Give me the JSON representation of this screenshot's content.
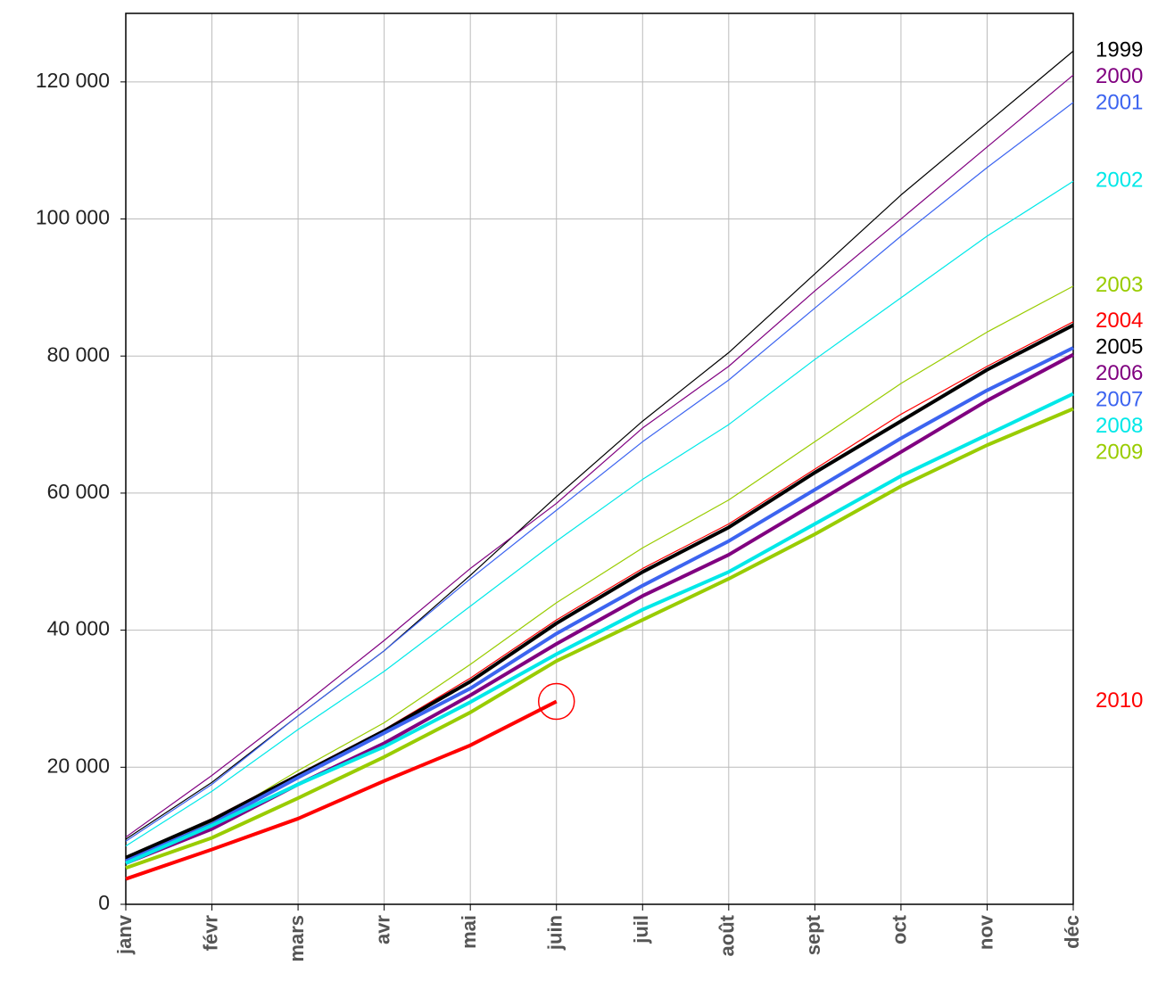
{
  "chart_data": {
    "type": "line",
    "categories": [
      "janv",
      "févr",
      "mars",
      "avr",
      "mai",
      "juin",
      "juil",
      "août",
      "sept",
      "oct",
      "nov",
      "déc"
    ],
    "ylim": [
      0,
      130000
    ],
    "yticks": [
      {
        "value": 0,
        "label": "0"
      },
      {
        "value": 20000,
        "label": "20 000"
      },
      {
        "value": 40000,
        "label": "40 000"
      },
      {
        "value": 60000,
        "label": "60 000"
      },
      {
        "value": 80000,
        "label": "80 000"
      },
      {
        "value": 100000,
        "label": "100 000"
      },
      {
        "value": 120000,
        "label": "120 000"
      }
    ],
    "grid": true,
    "series": [
      {
        "name": "1999",
        "color": "#000000",
        "values": [
          9500,
          17800,
          27500,
          37000,
          48000,
          59500,
          70500,
          80500,
          92000,
          103500,
          114000,
          124500
        ]
      },
      {
        "name": "2000",
        "color": "#800080",
        "values": [
          9800,
          18800,
          28500,
          38500,
          49000,
          58500,
          69500,
          78500,
          89500,
          100000,
          110500,
          121000
        ]
      },
      {
        "name": "2001",
        "color": "#3c64f0",
        "values": [
          9200,
          17500,
          27500,
          37000,
          47500,
          57500,
          67500,
          76500,
          87000,
          97500,
          107500,
          117000
        ]
      },
      {
        "name": "2002",
        "color": "#00e8e8",
        "values": [
          8500,
          16500,
          25500,
          34000,
          43500,
          53000,
          62000,
          70000,
          79500,
          88500,
          97500,
          105500
        ]
      },
      {
        "name": "2003",
        "color": "#99cc00",
        "values": [
          7000,
          12000,
          19500,
          26500,
          35000,
          44000,
          52000,
          59000,
          67500,
          76000,
          83500,
          90200
        ]
      },
      {
        "name": "2004",
        "color": "#ff0000",
        "values": [
          6800,
          12500,
          19000,
          25500,
          33000,
          41500,
          49000,
          55500,
          63500,
          71500,
          78500,
          85000
        ]
      },
      {
        "name": "2005",
        "color": "#000000",
        "values": [
          6800,
          12300,
          18800,
          25300,
          32500,
          41000,
          48500,
          55000,
          63000,
          70500,
          78000,
          84500
        ]
      },
      {
        "name": "2006",
        "color": "#800080",
        "values": [
          6000,
          11000,
          17500,
          23500,
          30500,
          38000,
          45000,
          51000,
          58500,
          66000,
          73500,
          80200
        ]
      },
      {
        "name": "2007",
        "color": "#3c64f0",
        "values": [
          6300,
          11700,
          18500,
          25000,
          31500,
          39500,
          46500,
          53000,
          60500,
          68000,
          75000,
          81200
        ]
      },
      {
        "name": "2008",
        "color": "#00e8e8",
        "values": [
          6000,
          11500,
          17500,
          23000,
          29500,
          36500,
          43000,
          48500,
          55500,
          62500,
          68500,
          74500
        ]
      },
      {
        "name": "2009",
        "color": "#99cc00",
        "values": [
          5300,
          9700,
          15500,
          21500,
          28000,
          35500,
          41500,
          47500,
          54000,
          61000,
          67000,
          72300
        ]
      },
      {
        "name": "2010",
        "color": "#ff0000",
        "values": [
          3700,
          8000,
          12500,
          18000,
          23200,
          29600,
          null,
          null,
          null,
          null,
          null,
          null
        ]
      }
    ]
  }
}
